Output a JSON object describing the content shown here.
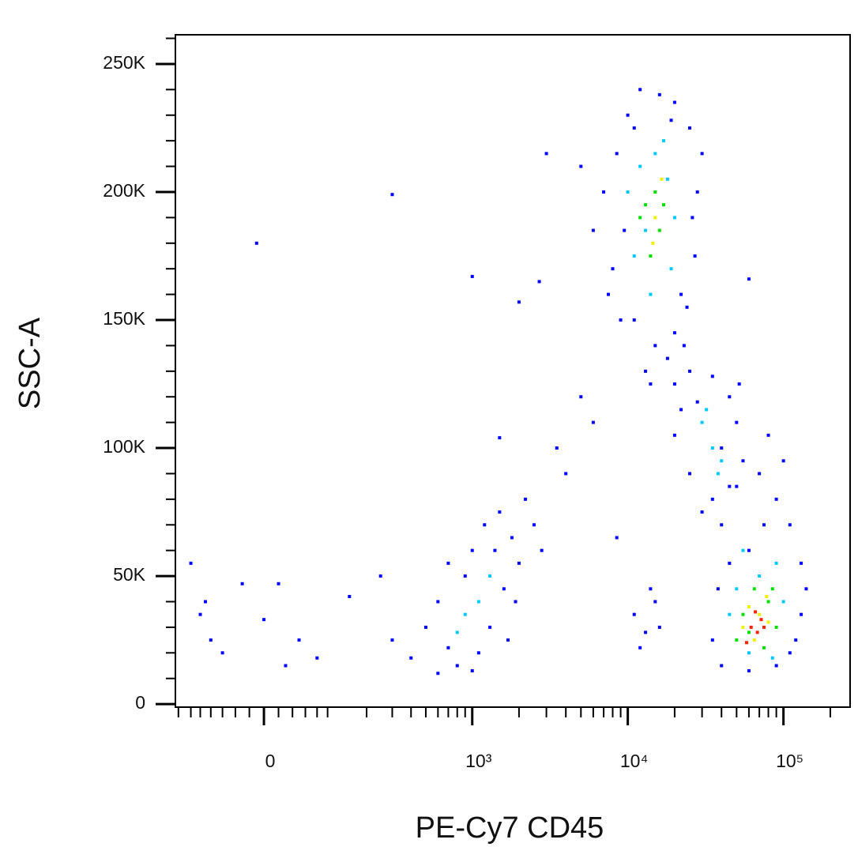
{
  "chart_data": {
    "type": "scatter",
    "xlabel": "PE-Cy7  CD45",
    "ylabel": "SSC-A",
    "xscale": "biexponential",
    "xlim": [
      -158,
      268000
    ],
    "ylim": [
      -1200,
      261400
    ],
    "xticks": [
      0,
      {
        "value": 1000,
        "label": "10³"
      },
      {
        "value": 10000,
        "label": "10⁴"
      },
      {
        "value": 100000,
        "label": "10⁵"
      }
    ],
    "xminorticks": [
      -150,
      -120,
      -100,
      -80,
      -60,
      -40,
      -20,
      20,
      40,
      60,
      80,
      100,
      200,
      300,
      400,
      500,
      600,
      700,
      800,
      900,
      2000,
      3000,
      4000,
      5000,
      6000,
      7000,
      8000,
      9000,
      20000,
      30000,
      40000,
      50000,
      60000,
      70000,
      80000,
      90000,
      200000
    ],
    "yticks": [
      0,
      {
        "value": 50000,
        "label": "50K"
      },
      {
        "value": 100000,
        "label": "100K"
      },
      {
        "value": 150000,
        "label": "150K"
      },
      {
        "value": 200000,
        "label": "200K"
      },
      {
        "value": 250000,
        "label": "250K"
      }
    ],
    "yminorticks": [
      10000,
      20000,
      30000,
      40000,
      60000,
      70000,
      80000,
      90000,
      110000,
      120000,
      130000,
      140000,
      160000,
      170000,
      180000,
      190000,
      210000,
      220000,
      230000,
      240000,
      260000
    ],
    "series": [
      {
        "color": "#0000ff",
        "x": [
          7000,
          8000,
          9000,
          8500,
          10000,
          12000,
          16000,
          20000,
          25000,
          28000,
          27000,
          24000,
          20000,
          15000,
          11000,
          9500,
          13000,
          18000,
          30000,
          6000,
          7500,
          22000,
          26000,
          11000,
          19000,
          5000,
          14000,
          23000,
          20000,
          25000,
          35000,
          45000,
          50000,
          55000,
          45000,
          35000,
          25000,
          20000,
          30000,
          40000,
          28000,
          52000,
          22000,
          40000,
          50000,
          70000,
          90000,
          110000,
          130000,
          130000,
          110000,
          90000,
          60000,
          40000,
          35000,
          38000,
          100000,
          80000,
          60000,
          120000,
          45000,
          140000,
          75000,
          300,
          400,
          500,
          600,
          700,
          800,
          900,
          1000,
          1200,
          1500,
          1800,
          2000,
          2200,
          2500,
          1600,
          1300,
          700,
          1100,
          1900,
          1400,
          1000,
          2800,
          600,
          1700,
          11000,
          13000,
          15000,
          12000,
          14000,
          16000,
          -120,
          -100,
          -80,
          -60,
          -30,
          0,
          20,
          50,
          80,
          150,
          250,
          -10,
          300,
          1000,
          2000,
          3000,
          2700,
          60000,
          1500,
          3500,
          4000,
          5000,
          6000,
          8500,
          -90,
          30
        ],
        "values": [
          200000,
          170000,
          150000,
          215000,
          230000,
          240000,
          238000,
          235000,
          225000,
          200000,
          175000,
          155000,
          145000,
          140000,
          150000,
          185000,
          130000,
          135000,
          215000,
          185000,
          160000,
          160000,
          190000,
          225000,
          228000,
          210000,
          125000,
          140000,
          125000,
          130000,
          128000,
          120000,
          110000,
          95000,
          85000,
          80000,
          90000,
          105000,
          75000,
          100000,
          118000,
          125000,
          115000,
          70000,
          85000,
          90000,
          80000,
          70000,
          55000,
          35000,
          20000,
          15000,
          13000,
          15000,
          25000,
          45000,
          95000,
          105000,
          60000,
          25000,
          55000,
          45000,
          70000,
          25000,
          18000,
          30000,
          40000,
          22000,
          15000,
          50000,
          60000,
          70000,
          75000,
          65000,
          55000,
          80000,
          70000,
          45000,
          30000,
          55000,
          20000,
          40000,
          60000,
          13000,
          60000,
          12000,
          25000,
          35000,
          28000,
          40000,
          22000,
          45000,
          30000,
          55000,
          35000,
          25000,
          20000,
          47000,
          33000,
          47000,
          25000,
          18000,
          42000,
          50000,
          180000,
          199000,
          167000,
          157000,
          215000,
          165000,
          166000,
          104000,
          100000,
          90000,
          120000,
          110000,
          65000,
          40000,
          15000
        ]
      },
      {
        "color": "#00c8ff",
        "x": [
          10000,
          12000,
          15000,
          18000,
          20000,
          19000,
          14000,
          11000,
          17000,
          13000,
          30000,
          35000,
          40000,
          32000,
          38000,
          50000,
          55000,
          90000,
          100000,
          60000,
          85000,
          70000,
          45000,
          900,
          1100,
          800,
          1300
        ],
        "values": [
          200000,
          210000,
          215000,
          205000,
          190000,
          170000,
          160000,
          175000,
          220000,
          185000,
          110000,
          100000,
          95000,
          115000,
          90000,
          45000,
          60000,
          55000,
          40000,
          20000,
          18000,
          50000,
          35000,
          35000,
          40000,
          28000,
          50000
        ]
      },
      {
        "color": "#00e000",
        "x": [
          13000,
          15000,
          16000,
          14000,
          17000,
          12000,
          55000,
          65000,
          80000,
          90000,
          60000,
          75000,
          85000,
          50000
        ],
        "values": [
          195000,
          200000,
          185000,
          175000,
          195000,
          190000,
          35000,
          45000,
          40000,
          30000,
          28000,
          22000,
          45000,
          25000
        ]
      },
      {
        "color": "#f0f000",
        "x": [
          15000,
          14500,
          16500,
          60000,
          70000,
          80000,
          65000,
          78000,
          55000
        ],
        "values": [
          190000,
          180000,
          205000,
          38000,
          35000,
          32000,
          25000,
          42000,
          30000
        ]
      },
      {
        "color": "#ff2000",
        "x": [
          62000,
          68000,
          72000,
          58000,
          75000,
          66000
        ],
        "values": [
          30000,
          28000,
          33000,
          24000,
          30000,
          36000
        ]
      }
    ]
  }
}
